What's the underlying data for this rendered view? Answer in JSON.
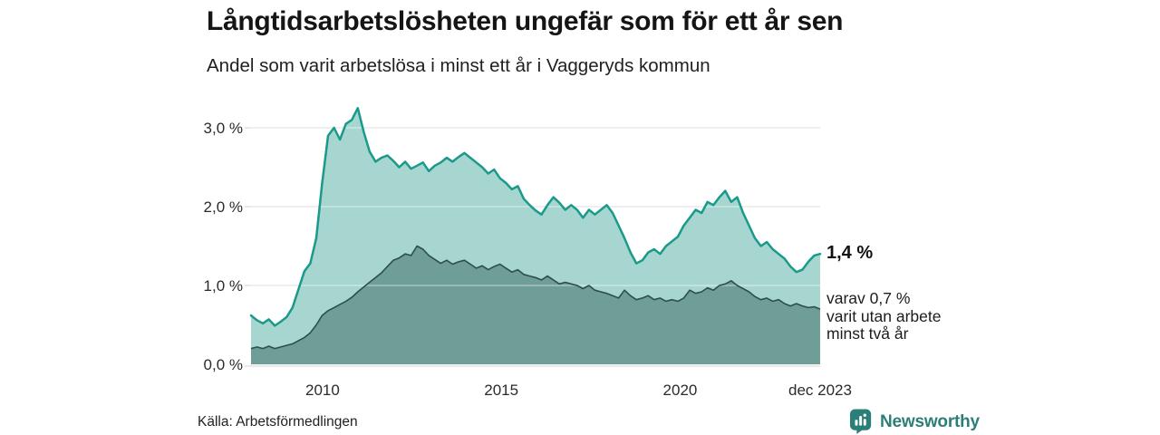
{
  "colors": {
    "accent_line": "#199a8b",
    "light_fill": "#a7d5cf",
    "dark_line": "#2d4f4b",
    "dark_fill": "#6f9d98",
    "grid": "#e0e0e0",
    "grid_overlay": "rgba(255,255,255,0.4)",
    "brand_teal": "#2c7f78"
  },
  "annotations": {
    "end_value_label": "1,4 %",
    "secondary_lines": [
      "varav 0,7 %",
      "varit utan arbete",
      "minst två år"
    ]
  },
  "footer": {
    "source": "Källa: Arbetsförmedlingen",
    "brand": "Newsworthy",
    "brand_logo_icon": "speech-bubble-bar-chart"
  },
  "chart_data": {
    "type": "area",
    "title": "Långtidsarbetslösheten ungefär som för ett år sen",
    "subtitle": "Andel som varit arbetslösa i minst ett år i Vaggeryds kommun",
    "x_domain": [
      2008.0,
      2023.917
    ],
    "y_domain": [
      0,
      3.4
    ],
    "grid": true,
    "legend_position": "right-annotations",
    "yticks": [
      {
        "value": 0,
        "label": "0,0 %"
      },
      {
        "value": 1,
        "label": "1,0 %"
      },
      {
        "value": 2,
        "label": "2,0 %"
      },
      {
        "value": 3,
        "label": "3,0 %"
      }
    ],
    "xticks": [
      {
        "value": 2010,
        "label": "2010"
      },
      {
        "value": 2015,
        "label": "2015"
      },
      {
        "value": 2020,
        "label": "2020"
      },
      {
        "value": 2023.917,
        "label": "dec 2023"
      }
    ],
    "x_note": "monthly values Jan 2008 – Dec 2023, sampled every 2 months",
    "series": [
      {
        "name": "arbetslösa-minst-ett-ar",
        "end_value_pct": 1.4,
        "values": [
          0.62,
          0.56,
          0.52,
          0.57,
          0.49,
          0.54,
          0.6,
          0.72,
          0.95,
          1.18,
          1.28,
          1.6,
          2.3,
          2.9,
          3.0,
          2.85,
          3.05,
          3.1,
          3.25,
          2.95,
          2.7,
          2.57,
          2.62,
          2.65,
          2.58,
          2.5,
          2.57,
          2.48,
          2.52,
          2.56,
          2.45,
          2.52,
          2.56,
          2.62,
          2.57,
          2.63,
          2.68,
          2.62,
          2.56,
          2.5,
          2.42,
          2.47,
          2.36,
          2.3,
          2.22,
          2.26,
          2.1,
          2.02,
          1.95,
          1.9,
          2.02,
          2.12,
          2.05,
          1.96,
          2.02,
          1.96,
          1.86,
          1.96,
          1.9,
          1.96,
          2.02,
          1.92,
          1.76,
          1.6,
          1.42,
          1.28,
          1.32,
          1.42,
          1.46,
          1.4,
          1.5,
          1.56,
          1.62,
          1.76,
          1.86,
          1.96,
          1.92,
          2.06,
          2.02,
          2.12,
          2.2,
          2.06,
          2.12,
          1.92,
          1.76,
          1.6,
          1.5,
          1.55,
          1.46,
          1.4,
          1.34,
          1.24,
          1.17,
          1.2,
          1.3,
          1.38,
          1.4
        ]
      },
      {
        "name": "varav-utan-arbete-minst-tva-ar",
        "end_value_pct": 0.7,
        "values": [
          0.2,
          0.22,
          0.2,
          0.23,
          0.2,
          0.22,
          0.24,
          0.26,
          0.3,
          0.34,
          0.4,
          0.5,
          0.62,
          0.68,
          0.72,
          0.76,
          0.8,
          0.85,
          0.92,
          0.98,
          1.04,
          1.1,
          1.16,
          1.24,
          1.32,
          1.35,
          1.4,
          1.38,
          1.5,
          1.46,
          1.38,
          1.33,
          1.28,
          1.32,
          1.27,
          1.3,
          1.32,
          1.27,
          1.22,
          1.25,
          1.2,
          1.24,
          1.27,
          1.22,
          1.17,
          1.2,
          1.14,
          1.12,
          1.1,
          1.07,
          1.12,
          1.07,
          1.02,
          1.04,
          1.02,
          1.0,
          0.96,
          1.0,
          0.94,
          0.92,
          0.9,
          0.87,
          0.84,
          0.94,
          0.87,
          0.82,
          0.84,
          0.87,
          0.82,
          0.84,
          0.8,
          0.82,
          0.8,
          0.84,
          0.94,
          0.9,
          0.92,
          0.97,
          0.94,
          1.0,
          1.02,
          1.06,
          1.0,
          0.96,
          0.92,
          0.86,
          0.82,
          0.84,
          0.8,
          0.82,
          0.77,
          0.74,
          0.77,
          0.74,
          0.72,
          0.73,
          0.7
        ]
      }
    ]
  }
}
